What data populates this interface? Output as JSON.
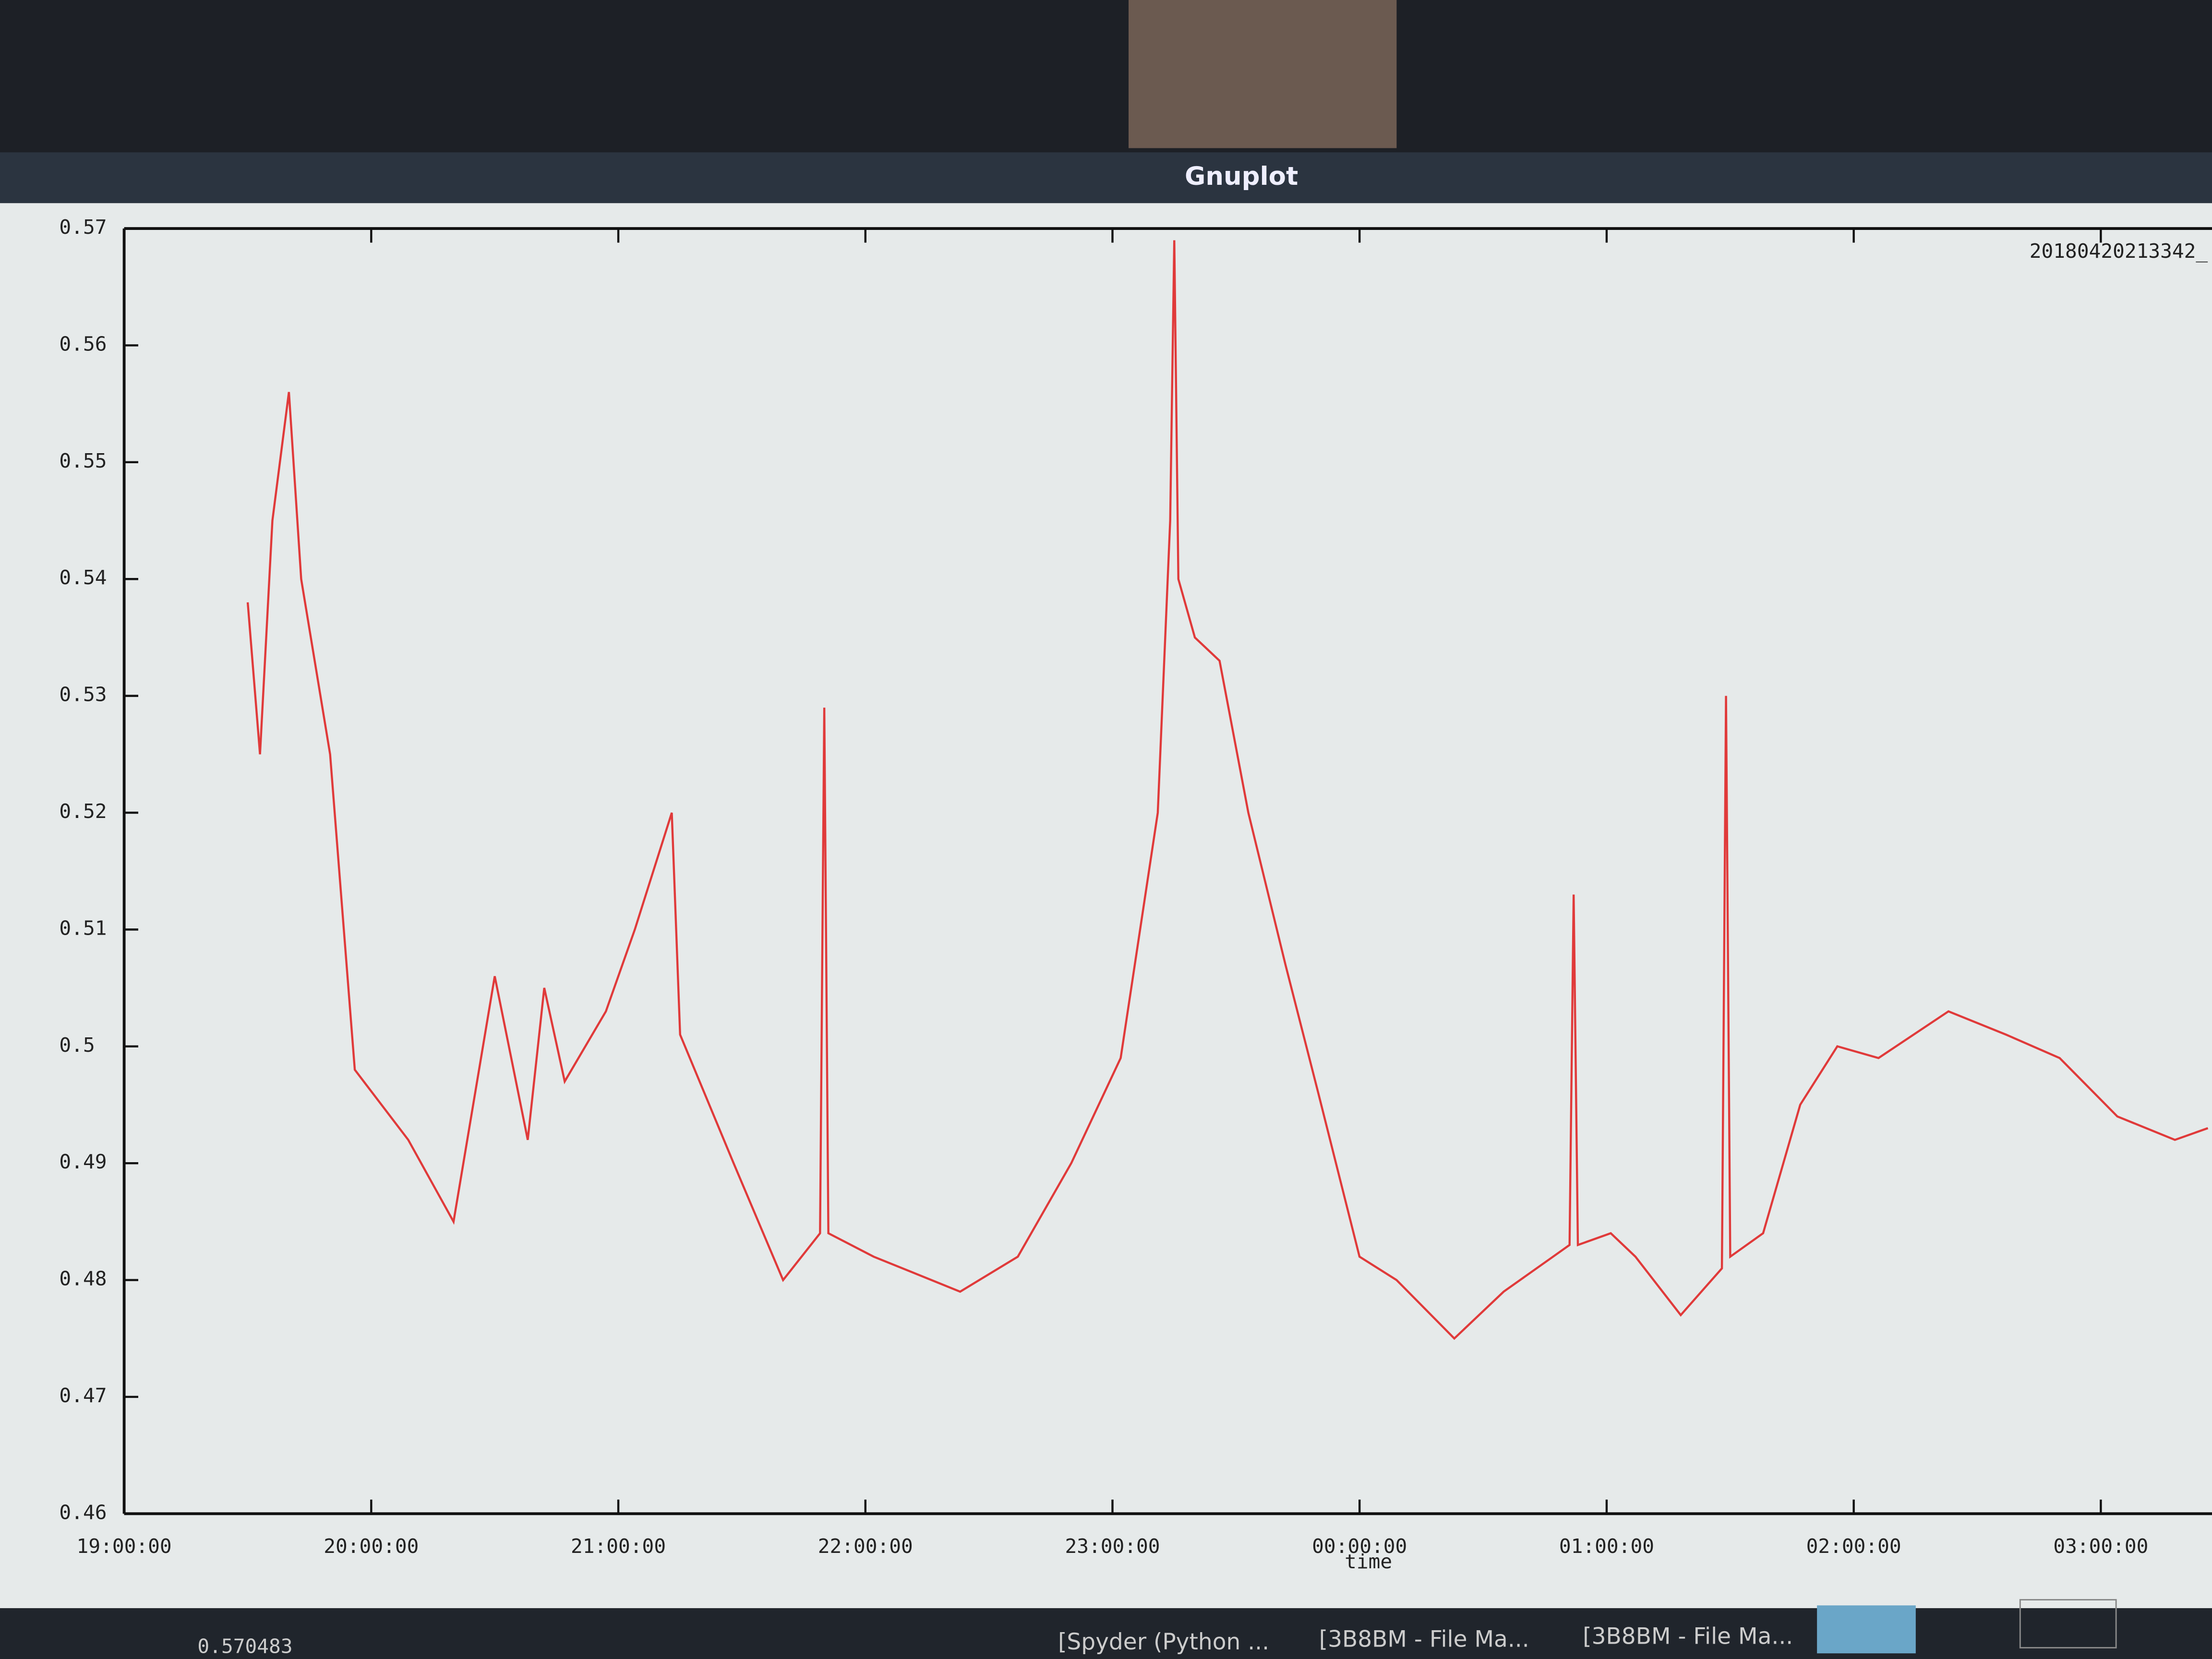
{
  "window": {
    "title": "Gnuplot"
  },
  "chart_data": {
    "type": "line",
    "subtitle": "20180420213342_",
    "x_label": "time",
    "xlim": [
      "19:00:00",
      "03:27:00"
    ],
    "xticks": [
      "19:00:00",
      "20:00:00",
      "21:00:00",
      "22:00:00",
      "23:00:00",
      "00:00:00",
      "01:00:00",
      "02:00:00",
      "03:00:00"
    ],
    "ylim": [
      0.46,
      0.57
    ],
    "yticks": [
      0.46,
      0.47,
      0.48,
      0.49,
      0.5,
      0.51,
      0.52,
      0.53,
      0.54,
      0.55,
      0.56,
      0.57
    ],
    "series": [
      {
        "color": "#e03a3a",
        "x": [
          "19:30:00",
          "19:33:00",
          "19:36:00",
          "19:40:00",
          "19:43:00",
          "19:50:00",
          "19:56:00",
          "20:09:00",
          "20:20:00",
          "20:30:00",
          "20:38:00",
          "20:42:00",
          "20:47:00",
          "20:57:00",
          "21:04:00",
          "21:13:00",
          "21:15:00",
          "21:28:00",
          "21:40:00",
          "21:49:00",
          "21:50:00",
          "21:51:00",
          "22:02:00",
          "22:23:00",
          "22:37:00",
          "22:50:00",
          "23:02:00",
          "23:11:00",
          "23:14:00",
          "23:15:00",
          "23:16:00",
          "23:20:00",
          "23:26:00",
          "23:33:00",
          "23:42:00",
          "23:50:00",
          "00:00:00",
          "00:09:00",
          "00:23:00",
          "00:35:00",
          "00:47:00",
          "00:51:00",
          "00:52:00",
          "00:53:00",
          "01:01:00",
          "01:07:00",
          "01:18:00",
          "01:28:00",
          "01:29:00",
          "01:30:00",
          "01:38:00",
          "01:47:00",
          "01:56:00",
          "02:06:00",
          "02:23:00",
          "02:37:00",
          "02:50:00",
          "03:04:00",
          "03:18:00",
          "03:26:00"
        ],
        "values": [
          0.538,
          0.525,
          0.545,
          0.556,
          0.54,
          0.525,
          0.498,
          0.492,
          0.485,
          0.506,
          0.492,
          0.505,
          0.497,
          0.503,
          0.51,
          0.52,
          0.501,
          0.49,
          0.48,
          0.484,
          0.529,
          0.484,
          0.482,
          0.479,
          0.482,
          0.49,
          0.499,
          0.52,
          0.545,
          0.569,
          0.54,
          0.535,
          0.533,
          0.52,
          0.507,
          0.496,
          0.482,
          0.48,
          0.475,
          0.479,
          0.482,
          0.483,
          0.513,
          0.483,
          0.484,
          0.482,
          0.477,
          0.481,
          0.53,
          0.482,
          0.484,
          0.495,
          0.5,
          0.499,
          0.503,
          0.501,
          0.499,
          0.494,
          0.492,
          0.493
        ]
      }
    ]
  },
  "status": {
    "value": "0.570483"
  },
  "taskbar": {
    "items": [
      "[Spyder (Python ...",
      "[3B8BM - File Ma...",
      "[3B8BM - File Ma..."
    ]
  }
}
